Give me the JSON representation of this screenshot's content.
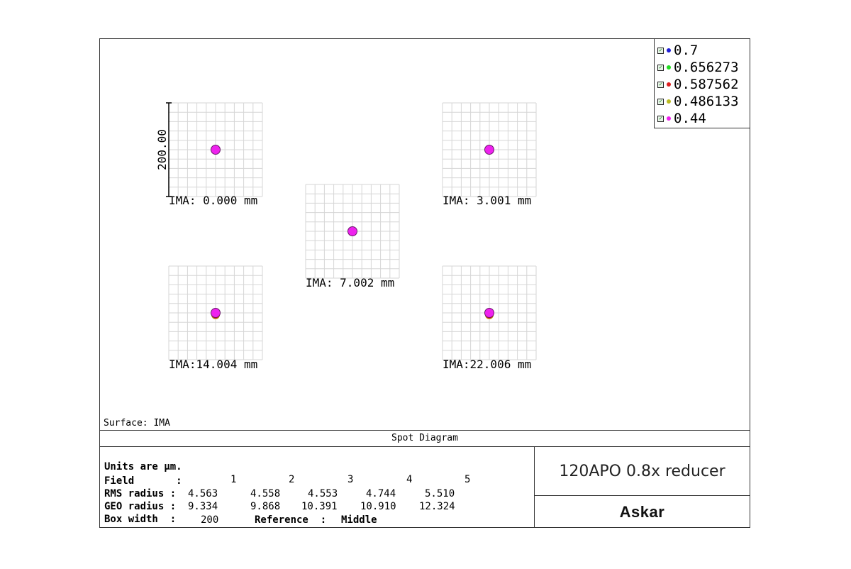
{
  "chart_data": {
    "type": "scatter",
    "title": "Spot Diagram",
    "scale_label": "200.00",
    "surface": "Surface: IMA",
    "wavelengths": [
      {
        "label": "0.7",
        "color": "#1f1fd6"
      },
      {
        "label": "0.656273",
        "color": "#22dd22"
      },
      {
        "label": "0.587562",
        "color": "#dd1f1f"
      },
      {
        "label": "0.486133",
        "color": "#bbbb22"
      },
      {
        "label": "0.44",
        "color": "#ee22ee"
      }
    ],
    "fields": [
      {
        "label": "IMA: 0.000 mm",
        "spots": [
          {
            "dx": 0,
            "dy": 0
          }
        ]
      },
      {
        "label": "IMA: 3.001 mm",
        "spots": [
          {
            "dx": 0,
            "dy": 0
          }
        ]
      },
      {
        "label": "IMA: 7.002 mm",
        "spots": [
          {
            "dx": 0,
            "dy": 0
          }
        ]
      },
      {
        "label": "IMA:14.004 mm",
        "spots": [
          {
            "dx": 0,
            "dy": 0
          }
        ]
      },
      {
        "label": "IMA:22.006 mm",
        "spots": [
          {
            "dx": 0,
            "dy": 0
          }
        ]
      }
    ]
  },
  "stats": {
    "units_line": "Units are µm.",
    "field_label": "Field       :",
    "field_values": [
      "1",
      "2",
      "3",
      "4",
      "5"
    ],
    "rms_label": "RMS radius :",
    "rms_values": [
      "4.563",
      "4.558",
      "4.553",
      "4.744",
      "5.510"
    ],
    "geo_label": "GEO radius :",
    "geo_values": [
      "9.334",
      "9.868",
      "10.391",
      "10.910",
      "12.324"
    ],
    "box_label": "Box width  :",
    "box_value": "200",
    "reference_label": "Reference  :",
    "reference_value": "Middle"
  },
  "lens_name": "120APO 0.8x reducer",
  "brand": "Askar"
}
